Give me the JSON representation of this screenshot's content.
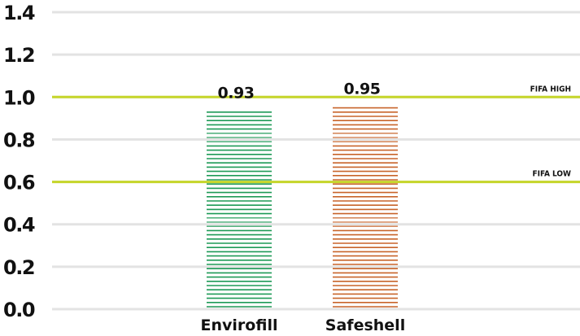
{
  "chart_data": {
    "type": "bar",
    "categories": [
      "Envirofill",
      "Safeshell"
    ],
    "values": [
      0.93,
      0.95
    ],
    "value_labels": [
      "0.93",
      "0.95"
    ],
    "ylim": [
      0,
      1.4
    ],
    "yticks": [
      0.0,
      0.2,
      0.4,
      0.6,
      0.8,
      1.0,
      1.2,
      1.4
    ],
    "ytick_labels": [
      "0.0",
      "0.2",
      "0.4",
      "0.6",
      "0.8",
      "1.0",
      "1.2",
      "1.4"
    ],
    "grid": true,
    "bar_style": "horizontal-stripes",
    "colors": {
      "bars": [
        "#1e9a57",
        "#c8642a"
      ],
      "grid": "#e3e3e3",
      "reference": "#c6d62a",
      "stripe_shade": "#d9d9d9"
    },
    "reference_lines": [
      {
        "label": "FIFA HIGH",
        "value": 1.0
      },
      {
        "label": "FIFA LOW",
        "value": 0.6
      }
    ]
  }
}
